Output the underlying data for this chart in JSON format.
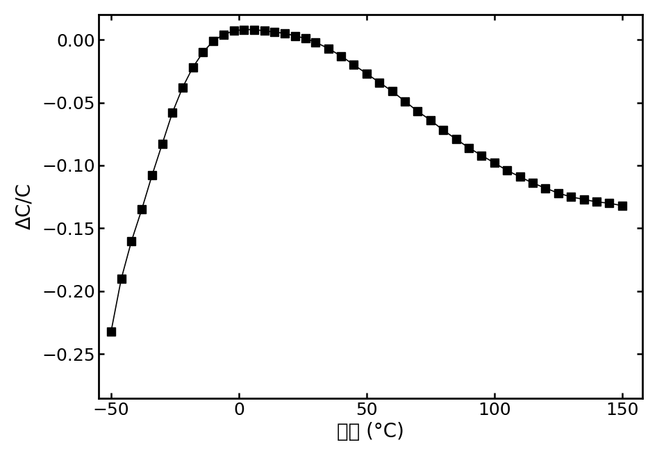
{
  "title": "",
  "xlabel": "温度 (°C)",
  "ylabel": "ΔC/C",
  "xlim": [
    -55,
    158
  ],
  "ylim": [
    -0.285,
    0.02
  ],
  "xticks": [
    -50,
    0,
    50,
    100,
    150
  ],
  "yticks": [
    0.0,
    -0.05,
    -0.1,
    -0.15,
    -0.2,
    -0.25
  ],
  "background_color": "#ffffff",
  "line_color": "#000000",
  "marker": "s",
  "marker_size": 8,
  "x_data": [
    -50,
    -46,
    -42,
    -38,
    -34,
    -30,
    -26,
    -22,
    -18,
    -14,
    -10,
    -6,
    -2,
    2,
    6,
    10,
    14,
    18,
    22,
    26,
    30,
    35,
    40,
    45,
    50,
    55,
    60,
    65,
    70,
    75,
    80,
    85,
    90,
    95,
    100,
    105,
    110,
    115,
    120,
    125,
    130,
    135,
    140,
    145,
    150
  ],
  "y_data": [
    -0.232,
    -0.19,
    -0.16,
    -0.135,
    -0.108,
    -0.083,
    -0.058,
    -0.038,
    -0.022,
    -0.01,
    -0.001,
    0.004,
    0.007,
    0.008,
    0.008,
    0.007,
    0.006,
    0.005,
    0.003,
    0.001,
    -0.002,
    -0.007,
    -0.013,
    -0.02,
    -0.027,
    -0.034,
    -0.041,
    -0.049,
    -0.057,
    -0.064,
    -0.072,
    -0.079,
    -0.086,
    -0.092,
    -0.098,
    -0.104,
    -0.109,
    -0.114,
    -0.118,
    -0.122,
    -0.125,
    -0.127,
    -0.129,
    -0.13,
    -0.132
  ],
  "figsize": [
    9.46,
    6.56
  ],
  "dpi": 100,
  "tick_fontsize": 18,
  "label_fontsize": 20,
  "spine_linewidth": 2.0
}
